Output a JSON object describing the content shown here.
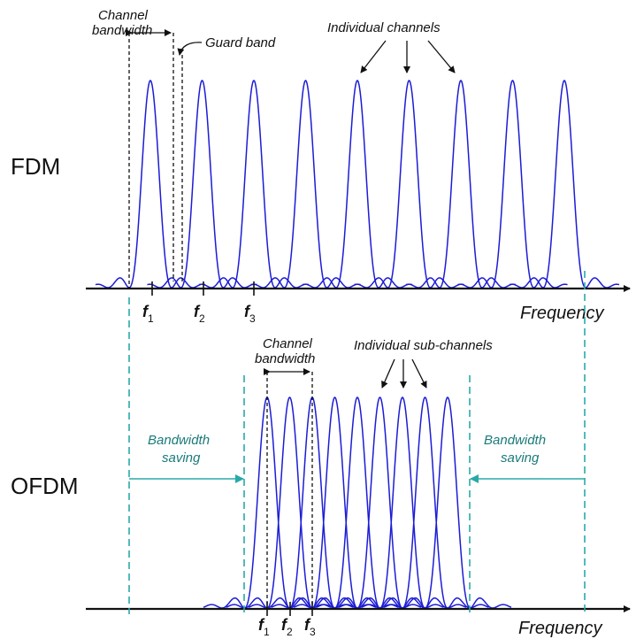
{
  "colors": {
    "spectrum": "#1c1cd6",
    "axis": "#111111",
    "saving": "#2aa8a8",
    "saving_text": "#1a7a7a"
  },
  "fdm": {
    "title": "FDM",
    "channel_bandwidth_line1": "Channel",
    "channel_bandwidth_line2": "bandwidth",
    "guard_band": "Guard band",
    "individual_channels": "Individual channels",
    "axis_label": "Frequency",
    "ticks": [
      {
        "base": "f",
        "sub": "1"
      },
      {
        "base": "f",
        "sub": "2"
      },
      {
        "base": "f",
        "sub": "3"
      }
    ]
  },
  "ofdm": {
    "title": "OFDM",
    "channel_bandwidth_line1": "Channel",
    "channel_bandwidth_line2": "bandwidth",
    "individual_subchannels": "Individual sub-channels",
    "saving_left_line1": "Bandwidth",
    "saving_left_line2": "saving",
    "saving_right_line1": "Bandwidth",
    "saving_right_line2": "saving",
    "axis_label": "Frequency",
    "ticks": [
      {
        "base": "f",
        "sub": "1"
      },
      {
        "base": "f",
        "sub": "2"
      },
      {
        "base": "f",
        "sub": "3"
      }
    ]
  }
}
